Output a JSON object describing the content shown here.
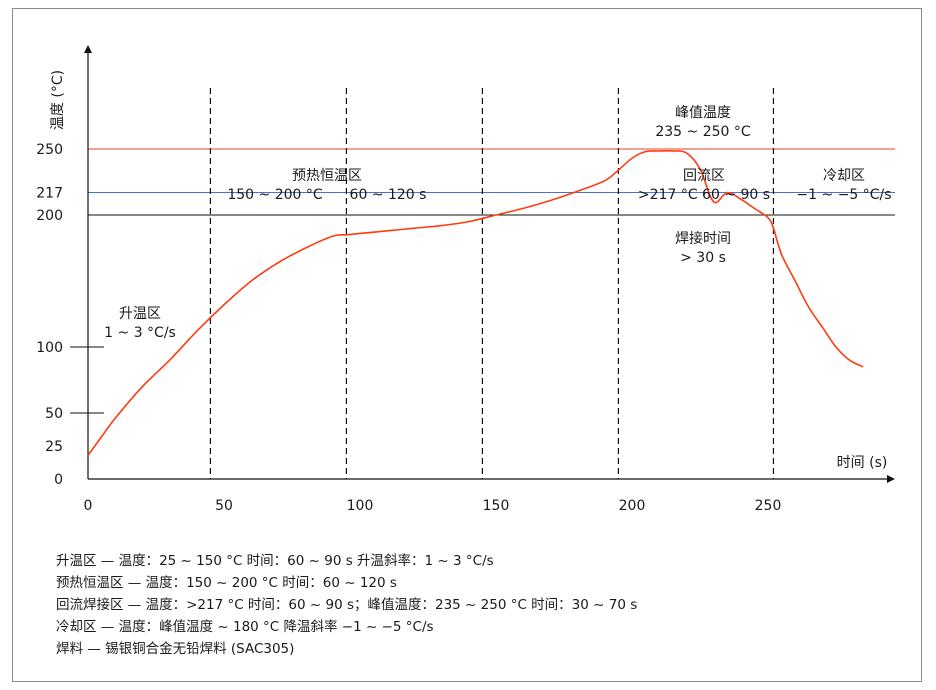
{
  "chart_data": {
    "type": "line",
    "xlabel": "时间 (s)",
    "ylabel": "温度 (°C)",
    "xlim": [
      0,
      295
    ],
    "ylim": [
      0,
      330
    ],
    "x_ticks": [
      0,
      50,
      100,
      150,
      200,
      250
    ],
    "y_ticks": [
      0,
      25,
      50,
      100,
      200,
      217,
      250
    ],
    "vertical_dashed_lines": [
      45,
      95,
      145,
      195,
      252
    ],
    "reference_lines": [
      {
        "y": 250,
        "color": "#e8432a"
      },
      {
        "y": 217,
        "color": "#4a6fd8"
      },
      {
        "y": 200,
        "color": "#111111"
      }
    ],
    "series": [
      {
        "color": "#ff3b10",
        "x": [
          0,
          5,
          10,
          20,
          30,
          40,
          50,
          60,
          70,
          80,
          90,
          95,
          100,
          110,
          120,
          130,
          140,
          150,
          160,
          170,
          180,
          190,
          195,
          200,
          205,
          210,
          215,
          220,
          225,
          230,
          235,
          240,
          245,
          250,
          252,
          255,
          260,
          265,
          270,
          275,
          280,
          285
        ],
        "values": [
          18,
          32,
          46,
          70,
          90,
          112,
          132,
          150,
          164,
          175,
          184,
          185,
          186,
          188,
          190,
          192,
          195,
          200,
          205,
          211,
          218,
          226,
          234,
          243,
          248,
          248.5,
          248.5,
          247,
          235,
          210,
          217,
          212,
          205,
          198,
          190,
          170,
          150,
          130,
          115,
          100,
          90,
          85
        ]
      }
    ],
    "annotations": [
      {
        "id": "ramp",
        "lines": [
          "升温区",
          "1 ~ 3 °C/s"
        ]
      },
      {
        "id": "soak",
        "lines": [
          "预热恒温区",
          "150 ~ 200 °C",
          "60 ~ 120 s"
        ]
      },
      {
        "id": "reflow",
        "lines": [
          "回流区",
          ">217 °C  60 ~ 90 s"
        ]
      },
      {
        "id": "peak",
        "lines": [
          "峰值温度",
          "235 ~ 250 °C"
        ]
      },
      {
        "id": "solder",
        "lines": [
          "焊接时间",
          "> 30 s"
        ]
      },
      {
        "id": "cool",
        "lines": [
          "冷却区",
          "−1 ~ −5 °C/s"
        ]
      }
    ]
  },
  "legend": [
    "升温区 — 温度：25 ~ 150 °C 时间：60 ~ 90 s 升温斜率：1 ~ 3 °C/s",
    "预热恒温区 — 温度：150 ~ 200 °C 时间：60 ~ 120 s",
    "回流焊接区 — 温度：>217 °C 时间：60 ~ 90 s；峰值温度：235 ~ 250 °C 时间：30 ~ 70 s",
    "冷却区 — 温度：峰值温度 ~ 180 °C 降温斜率 −1 ~ −5 °C/s",
    "焊料 — 锡银铜合金无铅焊料 (SAC305)"
  ]
}
